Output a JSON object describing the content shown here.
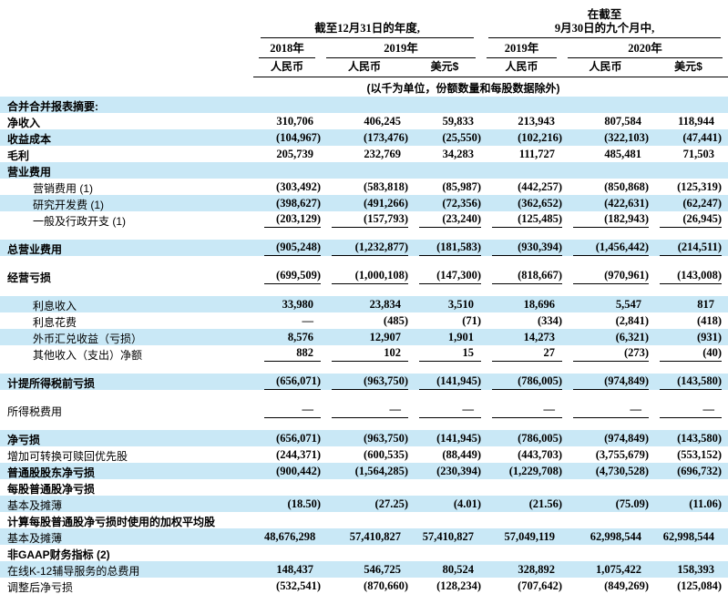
{
  "colors": {
    "row_shade": "#c9e8f6",
    "rule": "#000000",
    "text": "#000000"
  },
  "header": {
    "groups": [
      {
        "l1": "",
        "l2": "截至12月31日的年度,"
      },
      {
        "l1": "在截至",
        "l2": "9月30日的九个月中,"
      }
    ],
    "years": [
      {
        "label": "2018年"
      },
      {
        "label": "2019年"
      },
      {
        "label": "2019年"
      },
      {
        "label": "2020年"
      }
    ],
    "currencies": [
      "人民币",
      "人民币",
      "美元$",
      "人民币",
      "人民币",
      "美元$"
    ],
    "unit_note": "(以千为单位，份额数量和每股数据除外)"
  },
  "chart_data": {
    "type": "table",
    "title": "合并合并报表摘要",
    "columns": [
      "2018年 人民币",
      "2019年 人民币",
      "2019年 美元$",
      "截至9月30日九个月 2019年 人民币",
      "截至9月30日九个月 2020年 人民币",
      "2020年 美元$"
    ]
  },
  "rows": [
    {
      "t": "row",
      "label": "合并合并报表摘要:",
      "bold": true,
      "shade": true,
      "indent": false,
      "underline": false,
      "values": []
    },
    {
      "t": "row",
      "label": "净收入",
      "bold": true,
      "shade": false,
      "indent": false,
      "underline": false,
      "values": [
        "310,706",
        "406,245",
        "59,833",
        "213,943",
        "807,584",
        "118,944"
      ]
    },
    {
      "t": "row",
      "label": "收益成本",
      "bold": true,
      "shade": true,
      "indent": false,
      "underline": false,
      "values": [
        "(104,967)",
        "(173,476)",
        "(25,550)",
        "(102,216)",
        "(322,103)",
        "(47,441)"
      ]
    },
    {
      "t": "row",
      "label": "毛利",
      "bold": true,
      "shade": false,
      "indent": false,
      "underline": false,
      "values": [
        "205,739",
        "232,769",
        "34,283",
        "111,727",
        "485,481",
        "71,503"
      ]
    },
    {
      "t": "row",
      "label": "营业费用",
      "bold": true,
      "shade": true,
      "indent": false,
      "underline": false,
      "values": []
    },
    {
      "t": "row",
      "label": "营销费用 (1)",
      "bold": false,
      "shade": false,
      "indent": true,
      "underline": false,
      "values": [
        "(303,492)",
        "(583,818)",
        "(85,987)",
        "(442,257)",
        "(850,868)",
        "(125,319)"
      ]
    },
    {
      "t": "row",
      "label": "研究开发费 (1)",
      "bold": false,
      "shade": true,
      "indent": true,
      "underline": false,
      "values": [
        "(398,627)",
        "(491,266)",
        "(72,356)",
        "(362,652)",
        "(422,631)",
        "(62,247)"
      ]
    },
    {
      "t": "row",
      "label": "一般及行政开支 (1)",
      "bold": false,
      "shade": false,
      "indent": true,
      "underline": true,
      "values": [
        "(203,129)",
        "(157,793)",
        "(23,240)",
        "(125,485)",
        "(182,943)",
        "(26,945)"
      ]
    },
    {
      "t": "spacer"
    },
    {
      "t": "row",
      "label": "总营业费用",
      "bold": true,
      "shade": true,
      "indent": false,
      "underline": true,
      "values": [
        "(905,248)",
        "(1,232,877)",
        "(181,583)",
        "(930,394)",
        "(1,456,442)",
        "(214,511)"
      ]
    },
    {
      "t": "spacer"
    },
    {
      "t": "row",
      "label": "经营亏损",
      "bold": true,
      "shade": false,
      "indent": false,
      "underline": true,
      "values": [
        "(699,509)",
        "(1,000,108)",
        "(147,300)",
        "(818,667)",
        "(970,961)",
        "(143,008)"
      ]
    },
    {
      "t": "spacer"
    },
    {
      "t": "row",
      "label": "利息收入",
      "bold": false,
      "shade": true,
      "indent": true,
      "underline": false,
      "values": [
        "33,980",
        "23,834",
        "3,510",
        "18,696",
        "5,547",
        "817"
      ]
    },
    {
      "t": "row",
      "label": "利息花费",
      "bold": false,
      "shade": false,
      "indent": true,
      "underline": false,
      "values": [
        "—",
        "(485)",
        "(71)",
        "(334)",
        "(2,841)",
        "(418)"
      ]
    },
    {
      "t": "row",
      "label": "外币汇兑收益（亏损）",
      "bold": false,
      "shade": true,
      "indent": true,
      "underline": false,
      "values": [
        "8,576",
        "12,907",
        "1,901",
        "14,273",
        "(6,321)",
        "(931)"
      ]
    },
    {
      "t": "row",
      "label": "其他收入（支出）净额",
      "bold": false,
      "shade": false,
      "indent": true,
      "underline": true,
      "values": [
        "882",
        "102",
        "15",
        "27",
        "(273)",
        "(40)"
      ]
    },
    {
      "t": "spacer"
    },
    {
      "t": "row",
      "label": "计提所得税前亏损",
      "bold": true,
      "shade": true,
      "indent": false,
      "underline": true,
      "values": [
        "(656,071)",
        "(963,750)",
        "(141,945)",
        "(786,005)",
        "(974,849)",
        "(143,580)"
      ]
    },
    {
      "t": "spacer"
    },
    {
      "t": "row",
      "label": "所得税费用",
      "bold": false,
      "shade": false,
      "indent": false,
      "underline": true,
      "values": [
        "—",
        "—",
        "—",
        "—",
        "—",
        "—"
      ]
    },
    {
      "t": "spacer"
    },
    {
      "t": "row",
      "label": "净亏损",
      "bold": true,
      "shade": true,
      "indent": false,
      "underline": false,
      "values": [
        "(656,071)",
        "(963,750)",
        "(141,945)",
        "(786,005)",
        "(974,849)",
        "(143,580)"
      ]
    },
    {
      "t": "row",
      "label": "增加可转换可赎回优先股",
      "bold": false,
      "shade": false,
      "indent": false,
      "underline": false,
      "values": [
        "(244,371)",
        "(600,535)",
        "(88,449)",
        "(443,703)",
        "(3,755,679)",
        "(553,152)"
      ]
    },
    {
      "t": "row",
      "label": "普通股股东净亏损",
      "bold": true,
      "shade": true,
      "indent": false,
      "underline": false,
      "values": [
        "(900,442)",
        "(1,564,285)",
        "(230,394)",
        "(1,229,708)",
        "(4,730,528)",
        "(696,732)"
      ]
    },
    {
      "t": "row",
      "label": "每股普通股净亏损",
      "bold": true,
      "shade": false,
      "indent": false,
      "underline": false,
      "values": []
    },
    {
      "t": "row",
      "label": "基本及摊薄",
      "bold": false,
      "shade": true,
      "indent": false,
      "underline": false,
      "values": [
        "(18.50)",
        "(27.25)",
        "(4.01)",
        "(21.56)",
        "(75.09)",
        "(11.06)"
      ]
    },
    {
      "t": "row",
      "label": "计算每股普通股净亏损时使用的加权平均股",
      "bold": true,
      "shade": false,
      "indent": false,
      "underline": false,
      "values": []
    },
    {
      "t": "row",
      "label": "基本及摊薄",
      "bold": false,
      "shade": true,
      "indent": false,
      "underline": false,
      "values": [
        "48,676,298",
        "57,410,827",
        "57,410,827",
        "57,049,119",
        "62,998,544",
        "62,998,544"
      ]
    },
    {
      "t": "row",
      "label": "非GAAP财务指标 (2)",
      "bold": true,
      "shade": false,
      "indent": false,
      "underline": false,
      "values": []
    },
    {
      "t": "row",
      "label": "在线K-12辅导服务的总费用",
      "bold": false,
      "shade": true,
      "indent": false,
      "underline": false,
      "values": [
        "148,437",
        "546,725",
        "80,524",
        "328,892",
        "1,075,422",
        "158,393"
      ]
    },
    {
      "t": "row",
      "label": "调整后净亏损",
      "bold": false,
      "shade": false,
      "indent": false,
      "underline": false,
      "values": [
        "(532,541)",
        "(870,660)",
        "(128,234)",
        "(707,642)",
        "(849,269)",
        "(125,084)"
      ]
    }
  ]
}
